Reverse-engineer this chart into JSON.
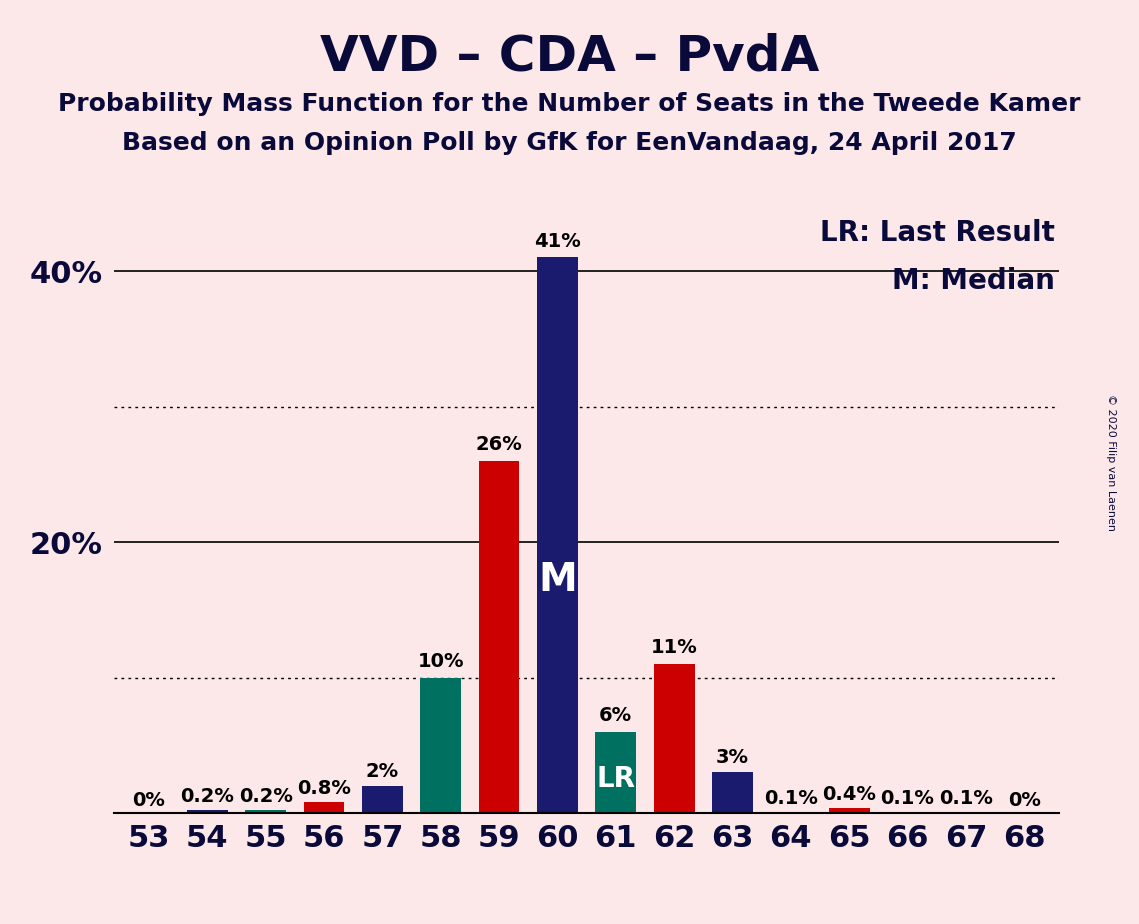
{
  "title": "VVD – CDA – PvdA",
  "subtitle1": "Probability Mass Function for the Number of Seats in the Tweede Kamer",
  "subtitle2": "Based on an Opinion Poll by GfK for EenVandaag, 24 April 2017",
  "copyright": "© 2020 Filip van Laenen",
  "legend_lr": "LR: Last Result",
  "legend_m": "M: Median",
  "background_color": "#fce8e8",
  "seats": [
    53,
    54,
    55,
    56,
    57,
    58,
    59,
    60,
    61,
    62,
    63,
    64,
    65,
    66,
    67,
    68
  ],
  "values": [
    0.0,
    0.2,
    0.2,
    0.8,
    2.0,
    10.0,
    26.0,
    41.0,
    6.0,
    11.0,
    3.0,
    0.1,
    0.4,
    0.1,
    0.1,
    0.0
  ],
  "colors": [
    "#1a1a6e",
    "#1a1a6e",
    "#007060",
    "#cc0000",
    "#1a1a6e",
    "#007060",
    "#cc0000",
    "#1a1a6e",
    "#007060",
    "#cc0000",
    "#1a1a6e",
    "#1a1a6e",
    "#cc0000",
    "#1a1a6e",
    "#1a1a6e",
    "#1a1a6e"
  ],
  "labels": [
    "0%",
    "0.2%",
    "0.2%",
    "0.8%",
    "2%",
    "10%",
    "26%",
    "41%",
    "6%",
    "11%",
    "3%",
    "0.1%",
    "0.4%",
    "0.1%",
    "0.1%",
    "0%"
  ],
  "median_seat": 60,
  "lr_seat": 61,
  "ylim": [
    0,
    45
  ],
  "yticks": [
    20,
    40
  ],
  "ytick_labels": [
    "20%",
    "40%"
  ],
  "solid_gridlines": [
    20,
    40
  ],
  "dotted_gridlines": [
    10,
    30
  ],
  "title_fontsize": 36,
  "subtitle_fontsize": 18,
  "label_fontsize": 14,
  "tick_fontsize": 22,
  "legend_fontsize": 20,
  "bar_width": 0.7,
  "navy": "#1a1a6e",
  "red": "#cc0000",
  "teal": "#007060",
  "text_color": "#0a0a3a"
}
